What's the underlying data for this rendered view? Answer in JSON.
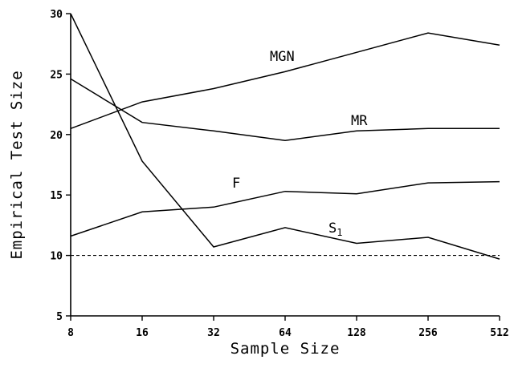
{
  "chart_data": {
    "type": "line",
    "title": "",
    "xlabel": "Sample Size",
    "ylabel": "Empirical Test Size",
    "x_scale": "log2",
    "categories": [
      "8",
      "16",
      "32",
      "64",
      "128",
      "256",
      "512"
    ],
    "x": [
      8,
      16,
      32,
      64,
      128,
      256,
      512
    ],
    "xlim": [
      8,
      512
    ],
    "ylim": [
      5,
      30
    ],
    "yticks": [
      "5",
      "10",
      "15",
      "20",
      "25",
      "30"
    ],
    "yticks_values": [
      5,
      10,
      15,
      20,
      25,
      30
    ],
    "grid": false,
    "legend": "none",
    "reference_line": {
      "y": 10,
      "style": "dashed"
    },
    "series": [
      {
        "name": "MGN",
        "values": [
          20.5,
          22.7,
          23.8,
          25.2,
          26.8,
          28.4,
          27.4
        ]
      },
      {
        "name": "MR",
        "values": [
          24.6,
          21.0,
          20.3,
          19.5,
          20.3,
          20.5,
          20.5
        ]
      },
      {
        "name": "F",
        "values": [
          11.6,
          13.6,
          14.0,
          15.3,
          15.1,
          16.0,
          16.1
        ]
      },
      {
        "name": "S",
        "name_subscript": "1",
        "values": [
          30.0,
          17.8,
          10.7,
          12.3,
          11.0,
          11.5,
          9.7
        ]
      }
    ]
  }
}
